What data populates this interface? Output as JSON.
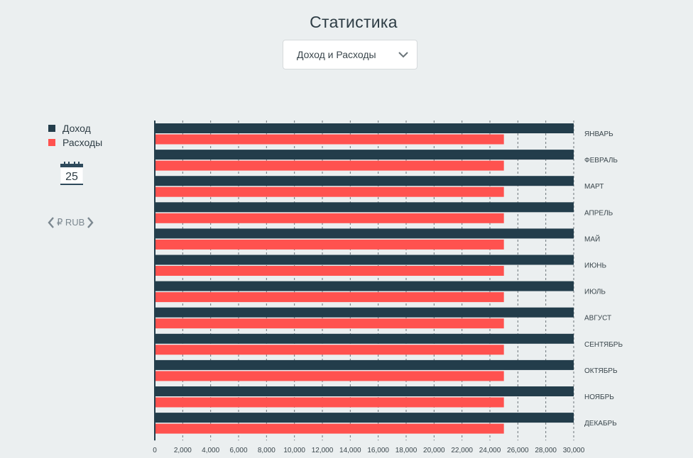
{
  "header": {
    "title": "Статистика"
  },
  "selector": {
    "value": "Доход и Расходы",
    "icon": "chevron-down-icon"
  },
  "legend": {
    "items": [
      {
        "label": "Доход",
        "color": "#233d4b"
      },
      {
        "label": "Расходы",
        "color": "#ff524f"
      }
    ]
  },
  "calendar": {
    "day": "25",
    "icon": "calendar-icon"
  },
  "currency": {
    "label": "₽ RUB",
    "prev_icon": "chevron-left-icon",
    "next_icon": "chevron-right-icon"
  },
  "chart_data": {
    "type": "bar",
    "orientation": "horizontal",
    "categories": [
      "ЯНВАРЬ",
      "ФЕВРАЛЬ",
      "МАРТ",
      "АПРЕЛЬ",
      "МАЙ",
      "ИЮНЬ",
      "ИЮЛЬ",
      "АВГУСТ",
      "СЕНТЯБРЬ",
      "ОКТЯБРЬ",
      "НОЯБРЬ",
      "ДЕКАБРЬ"
    ],
    "series": [
      {
        "name": "Доход",
        "color": "#233d4b",
        "values": [
          30000,
          30000,
          30000,
          30000,
          30000,
          30000,
          30000,
          30000,
          30000,
          30000,
          30000,
          30000
        ]
      },
      {
        "name": "Расходы",
        "color": "#ff524f",
        "values": [
          25000,
          25000,
          25000,
          25000,
          25000,
          25000,
          25000,
          25000,
          25000,
          25000,
          25000,
          25000
        ]
      }
    ],
    "xlim": [
      0,
      30000
    ],
    "xticks": [
      "0",
      "2,000",
      "4,000",
      "6,000",
      "8,000",
      "10,000",
      "12,000",
      "14,000",
      "16,000",
      "18,000",
      "20,000",
      "22,000",
      "24,000",
      "26,000",
      "28,000",
      "30,000"
    ],
    "grid": true,
    "legend_position": "top-left",
    "title": "",
    "xlabel": "",
    "ylabel": ""
  }
}
